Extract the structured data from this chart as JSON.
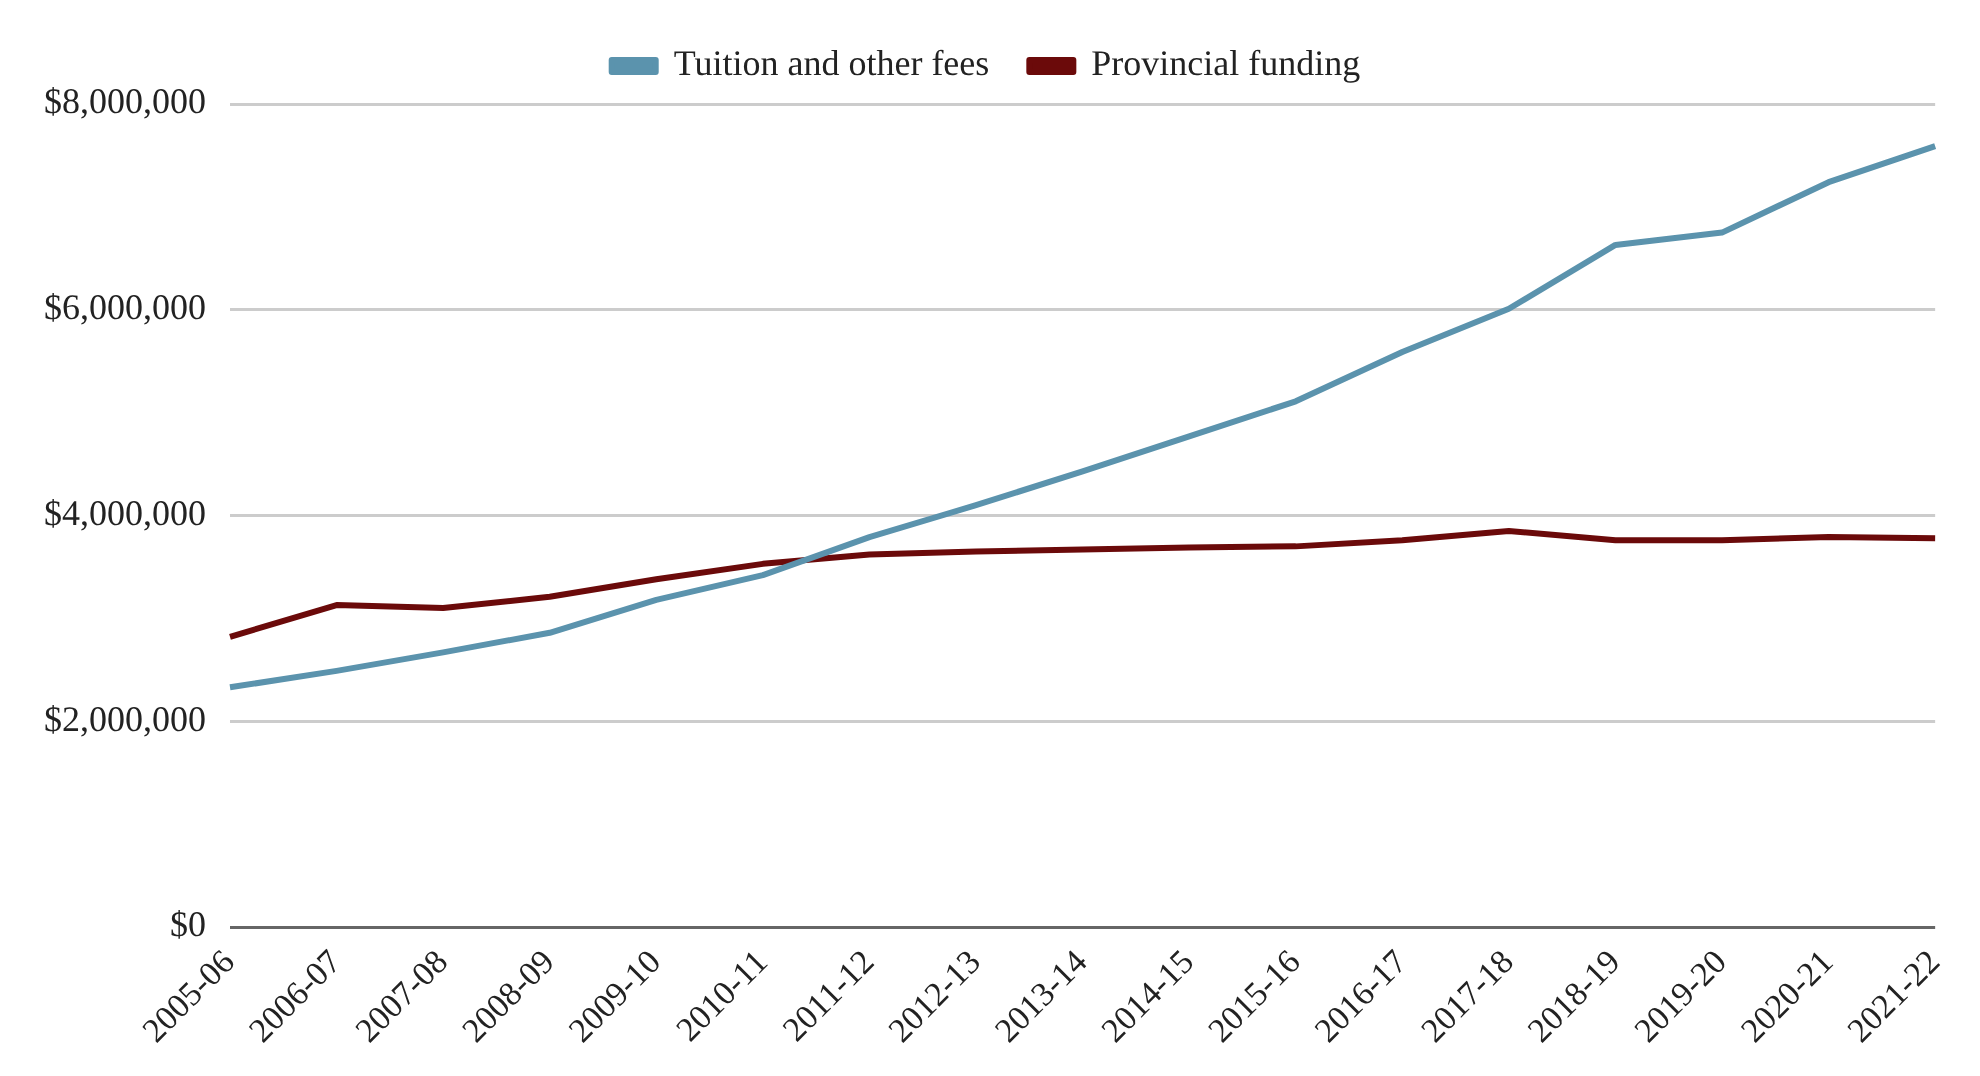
{
  "chart_data": {
    "type": "line",
    "categories": [
      "2005-06",
      "2006-07",
      "2007-08",
      "2008-09",
      "2009-10",
      "2010-11",
      "2011-12",
      "2012-13",
      "2013-14",
      "2014-15",
      "2015-16",
      "2016-17",
      "2017-18",
      "2018-19",
      "2019-20",
      "2020-21",
      "2021-22"
    ],
    "series": [
      {
        "name": "Tuition and other fees",
        "color": "#5b93ad",
        "values": [
          2330000,
          2490000,
          2670000,
          2860000,
          3180000,
          3420000,
          3790000,
          4100000,
          4430000,
          4770000,
          5110000,
          5590000,
          6010000,
          6630000,
          6750000,
          7240000,
          7590000
        ]
      },
      {
        "name": "Provincial funding",
        "color": "#6b0a0a",
        "values": [
          2820000,
          3130000,
          3100000,
          3210000,
          3380000,
          3530000,
          3620000,
          3650000,
          3670000,
          3690000,
          3700000,
          3760000,
          3850000,
          3760000,
          3760000,
          3790000,
          3780000
        ]
      }
    ],
    "ylim": [
      0,
      8000000
    ],
    "yticks": [
      {
        "value": 0,
        "label": "$0"
      },
      {
        "value": 2000000,
        "label": "$2,000,000"
      },
      {
        "value": 4000000,
        "label": "$4,000,000"
      },
      {
        "value": 6000000,
        "label": "$6,000,000"
      },
      {
        "value": 8000000,
        "label": "$8,000,000"
      }
    ],
    "grid": "y",
    "legend": "top",
    "marker": "none",
    "line_style": "solid"
  }
}
